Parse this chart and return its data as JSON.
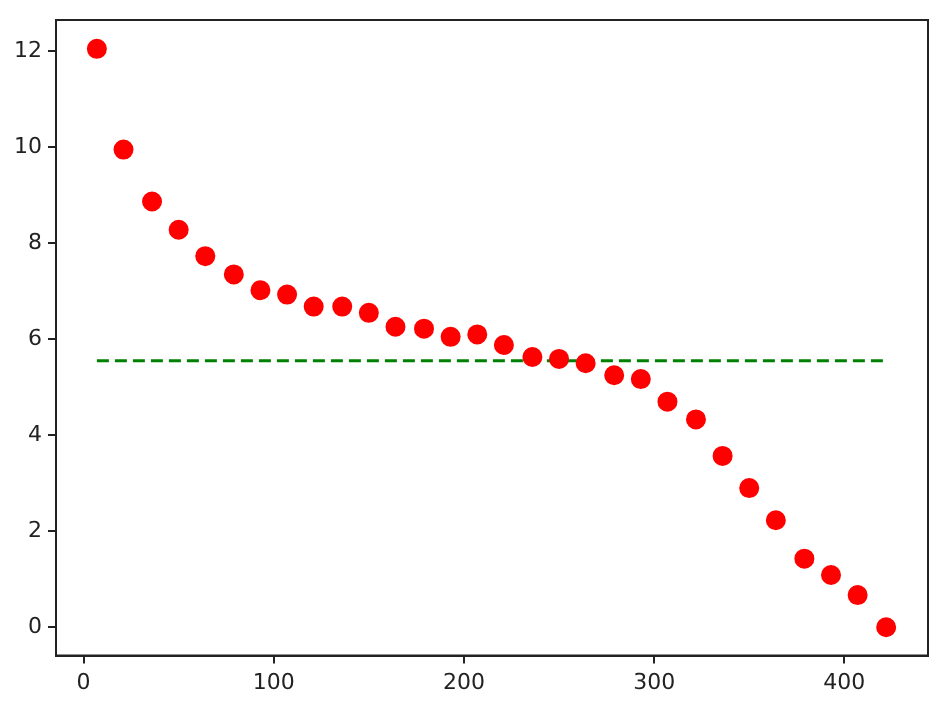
{
  "chart_data": {
    "type": "scatter",
    "xlim": [
      -14.5,
      444
    ],
    "ylim": [
      -0.59,
      12.65
    ],
    "xticks": [
      0,
      100,
      200,
      300,
      400
    ],
    "yticks": [
      0,
      2,
      4,
      6,
      8,
      10,
      12
    ],
    "grid": false,
    "legend": false,
    "series": [
      {
        "color": "#ff0000",
        "marker": "circle",
        "x": [
          7,
          21,
          36,
          50,
          64,
          79,
          93,
          107,
          121,
          136,
          150,
          164,
          179,
          193,
          207,
          221,
          236,
          250,
          264,
          279,
          293,
          307,
          322,
          336,
          350,
          364,
          379,
          393,
          407,
          422
        ],
        "values": [
          12.05,
          9.95,
          8.87,
          8.28,
          7.73,
          7.35,
          7.02,
          6.93,
          6.68,
          6.68,
          6.55,
          6.26,
          6.22,
          6.05,
          6.1,
          5.88,
          5.63,
          5.59,
          5.5,
          5.25,
          5.17,
          4.7,
          4.33,
          3.57,
          2.9,
          2.23,
          1.43,
          1.09,
          0.67,
          0
        ]
      },
      {
        "type": "line",
        "color": "#008000",
        "marker": "none",
        "line_style": "dashed",
        "x": [
          7,
          422
        ],
        "values": [
          5.55,
          5.55
        ]
      }
    ]
  }
}
